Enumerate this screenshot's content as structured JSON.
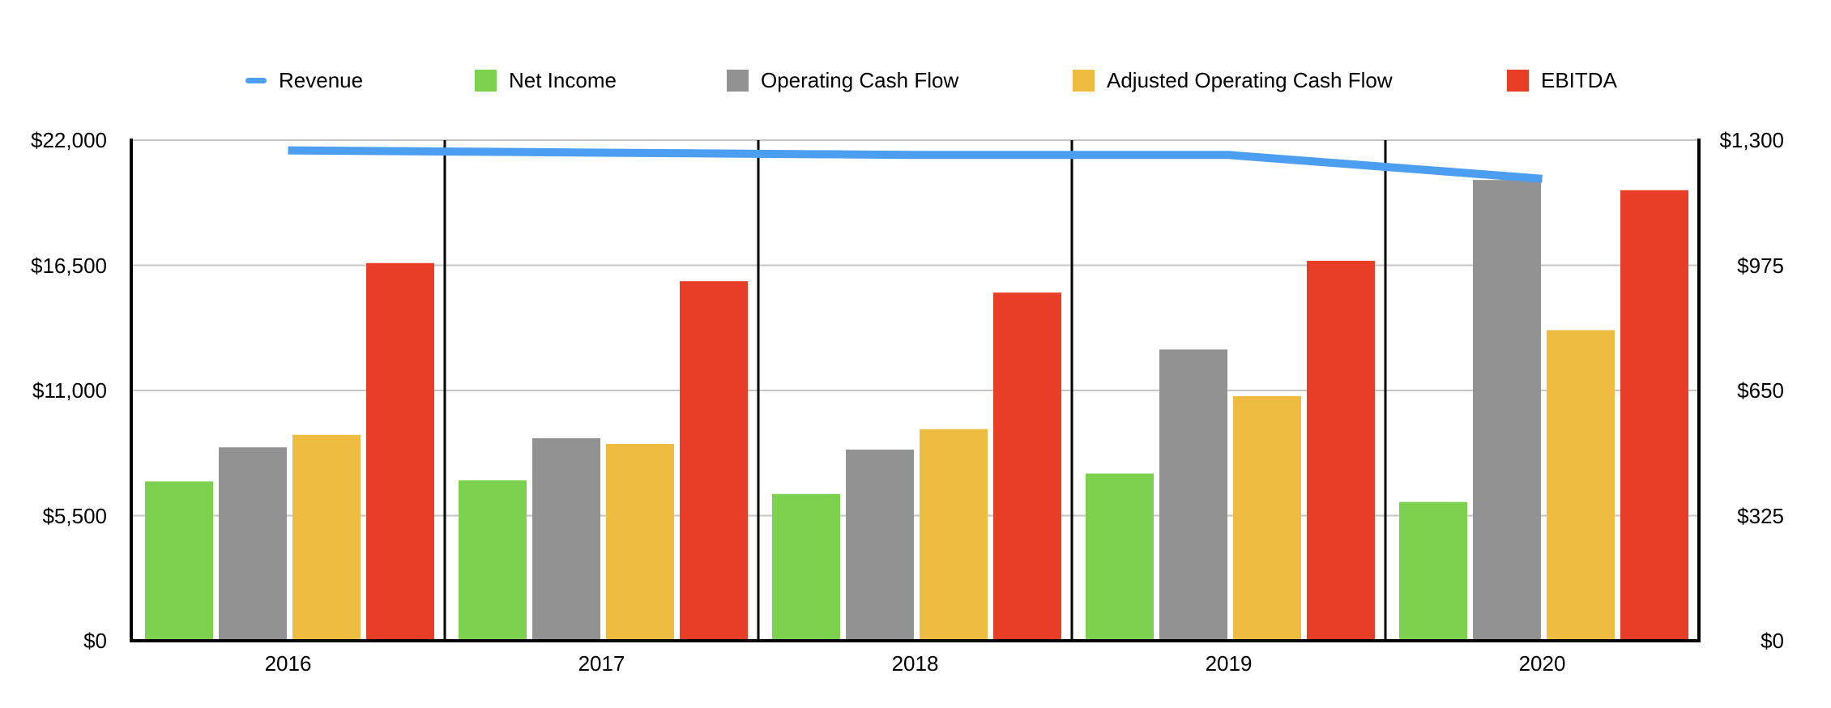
{
  "legend": {
    "items": [
      {
        "label": "Revenue",
        "color": "#4B9EF0",
        "marker": "line-dash"
      },
      {
        "label": "Net Income",
        "color": "#7CD14F",
        "marker": "square"
      },
      {
        "label": "Operating Cash Flow",
        "color": "#929292",
        "marker": "square"
      },
      {
        "label": "Adjusted Operating Cash Flow",
        "color": "#EDBC40",
        "marker": "square"
      },
      {
        "label": "EBITDA",
        "color": "#E83E27",
        "marker": "square"
      }
    ]
  },
  "chart_data": {
    "type": "bar+line combo, dual y-axis, values estimated from pixels",
    "categories": [
      "2016",
      "2017",
      "2018",
      "2019",
      "2020"
    ],
    "series": [
      {
        "name": "Revenue",
        "type": "line",
        "axis": "left",
        "color": "#4B9EF0",
        "values": [
          21550,
          21450,
          21350,
          21350,
          20300
        ]
      },
      {
        "name": "Net Income",
        "type": "bar",
        "axis": "left",
        "color": "#7CD14F",
        "values": [
          7000,
          7050,
          6450,
          7350,
          6100
        ]
      },
      {
        "name": "Operating Cash Flow",
        "type": "bar",
        "axis": "left",
        "color": "#929292",
        "values": [
          8500,
          8900,
          8400,
          12800,
          20250
        ]
      },
      {
        "name": "Adjusted Operating Cash Flow",
        "type": "bar",
        "axis": "left",
        "color": "#EDBC40",
        "values": [
          9050,
          8650,
          9300,
          10750,
          13650
        ]
      },
      {
        "name": "EBITDA",
        "type": "bar",
        "axis": "left",
        "color": "#E83E27",
        "values": [
          16600,
          15800,
          15300,
          16700,
          19800
        ]
      }
    ],
    "left_axis": {
      "min": 0,
      "max": 22000,
      "ticks": [
        22000,
        16500,
        11000,
        5500,
        0
      ],
      "tick_labels": [
        "$22,000",
        "$16,500",
        "$11,000",
        "$5,500",
        "$0"
      ]
    },
    "right_axis": {
      "min": 0,
      "max": 1300,
      "ticks": [
        1300,
        975,
        650,
        325,
        0
      ],
      "tick_labels": [
        "$1,300",
        "$975",
        "$650",
        "$325",
        "$0"
      ]
    },
    "gridlines": true,
    "panel_separators": true,
    "legend_position": "top",
    "colors": {
      "gridline": "#C6C6C6",
      "axis": "#000000",
      "text": "#000000",
      "background": "#FFFFFF"
    }
  }
}
